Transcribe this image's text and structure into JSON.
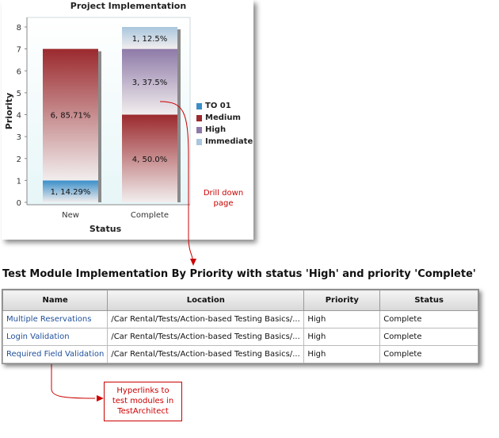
{
  "chart_data": {
    "type": "bar",
    "title": "Project Implementation",
    "xlabel": "Status",
    "ylabel": "Priority",
    "categories": [
      "New",
      "Complete"
    ],
    "ylim": [
      0,
      8
    ],
    "yticks": [
      "0",
      "1",
      "2",
      "3",
      "4",
      "5",
      "6",
      "7",
      "8"
    ],
    "stacked": true,
    "series": [
      {
        "name": "TO 01",
        "color": "#3a8fc9",
        "values": [
          1,
          0
        ],
        "labels": [
          "1, 14.29%",
          ""
        ]
      },
      {
        "name": "Medium",
        "color": "#9b2a2e",
        "values": [
          6,
          4
        ],
        "labels": [
          "6, 85.71%",
          "4, 50.0%"
        ]
      },
      {
        "name": "High",
        "color": "#8e7aa8",
        "values": [
          0,
          3
        ],
        "labels": [
          "",
          "3, 37.5%"
        ]
      },
      {
        "name": "Immediate",
        "color": "#a9c6dd",
        "values": [
          0,
          1
        ],
        "labels": [
          "",
          "1, 12.5%"
        ]
      }
    ],
    "grid": false,
    "legend_position": "right"
  },
  "annotations": {
    "drill_down": "Drill down\npage",
    "hyperlinks": "Hyperlinks to\ntest modules in\nTestArchitect"
  },
  "section": {
    "title": "Test Module Implementation By Priority with status 'High' and priority 'Complete'"
  },
  "table": {
    "headers": [
      "Name",
      "Location",
      "Priority",
      "Status"
    ],
    "rows": [
      {
        "name": "Multiple Reservations",
        "location": "/Car Rental/Tests/Action-based Testing Basics/...",
        "priority": "High",
        "status": "Complete"
      },
      {
        "name": "Login Validation",
        "location": "/Car Rental/Tests/Action-based Testing Basics/...",
        "priority": "High",
        "status": "Complete"
      },
      {
        "name": "Required Field Validation",
        "location": "/Car Rental/Tests/Action-based Testing Basics/...",
        "priority": "High",
        "status": "Complete"
      }
    ]
  }
}
